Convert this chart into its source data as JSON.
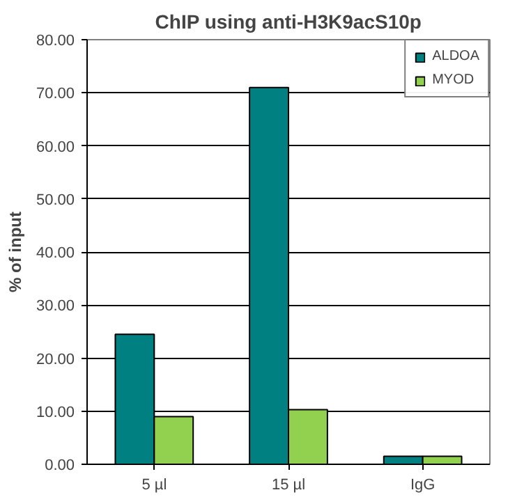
{
  "chart_data": {
    "type": "bar",
    "title": "ChIP using anti-H3K9acS10p",
    "ylabel": "% of input",
    "categories": [
      "5 µl",
      "15 µl",
      "IgG"
    ],
    "series": [
      {
        "name": "ALDOA",
        "color": "#008080",
        "values": [
          24.5,
          71,
          1.5
        ]
      },
      {
        "name": "MYOD",
        "color": "#92d050",
        "values": [
          9,
          10.3,
          1.5
        ]
      }
    ],
    "ylim": [
      0,
      80
    ],
    "yticks": [
      {
        "value": 0,
        "label": "0.00"
      },
      {
        "value": 10,
        "label": "10.00"
      },
      {
        "value": 20,
        "label": "20.00"
      },
      {
        "value": 30,
        "label": "30.00"
      },
      {
        "value": 40,
        "label": "40.00"
      },
      {
        "value": 50,
        "label": "50.00"
      },
      {
        "value": 60,
        "label": "60.00"
      },
      {
        "value": 70,
        "label": "70.00"
      },
      {
        "value": 80,
        "label": "80.00"
      }
    ],
    "grid": "y",
    "legend": "top right"
  }
}
